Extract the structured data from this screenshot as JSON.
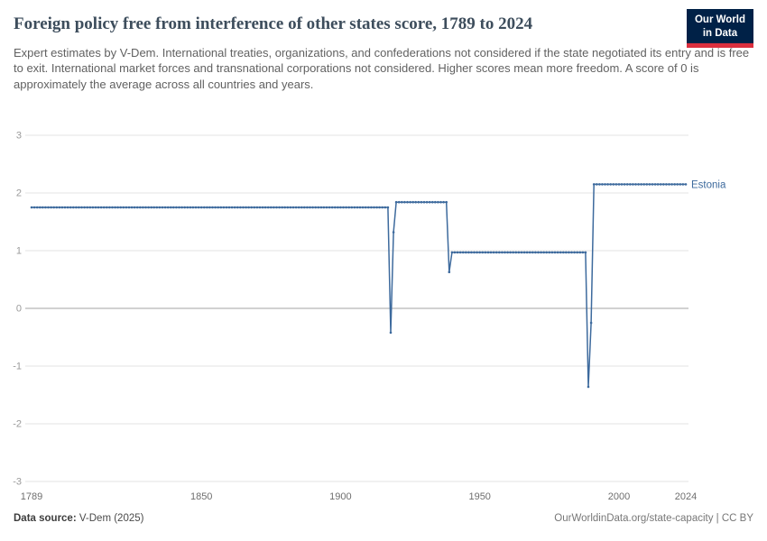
{
  "header": {
    "title": "Foreign policy free from interference of other states score, 1789 to 2024",
    "subtitle": "Expert estimates by V-Dem. International treaties, organizations, and confederations not considered if the state negotiated its entry and is free to exit. International market forces and transnational corporations not considered. Higher scores mean more freedom. A score of 0 is approximately the average across all countries and years.",
    "logo": {
      "line1": "Our World",
      "line2": "in Data",
      "bg": "#002147",
      "accent": "#dc2f3e"
    }
  },
  "chart_data": {
    "type": "line",
    "title": "Foreign policy free from interference of other states score, 1789 to 2024",
    "xlabel": "",
    "ylabel": "",
    "xlim": [
      1789,
      2024
    ],
    "ylim": [
      -3,
      3
    ],
    "x_ticks": [
      1789,
      1850,
      1900,
      1950,
      2000,
      2024
    ],
    "y_ticks": [
      3,
      2,
      1,
      0,
      -1,
      -2,
      -3
    ],
    "grid": true,
    "grid_color": "#e3e3e3",
    "zero_line_color": "#a3a3a3",
    "legend_position": "end-of-line-label",
    "series": [
      {
        "name": "Estonia",
        "color": "#3d6a9d",
        "segments": [
          {
            "from": 1789,
            "to": 1917,
            "value": 1.75
          },
          {
            "from": 1918,
            "to": 1918,
            "value": -0.42
          },
          {
            "from": 1919,
            "to": 1919,
            "value": 1.32
          },
          {
            "from": 1920,
            "to": 1938,
            "value": 1.84
          },
          {
            "from": 1939,
            "to": 1939,
            "value": 0.63
          },
          {
            "from": 1940,
            "to": 1988,
            "value": 0.97
          },
          {
            "from": 1989,
            "to": 1989,
            "value": -1.36
          },
          {
            "from": 1990,
            "to": 1990,
            "value": -0.25
          },
          {
            "from": 1991,
            "to": 2024,
            "value": 2.15
          }
        ]
      }
    ]
  },
  "footer": {
    "data_source_label": "Data source:",
    "data_source_value": "V-Dem (2025)",
    "credit": "OurWorldinData.org/state-capacity | CC BY"
  }
}
